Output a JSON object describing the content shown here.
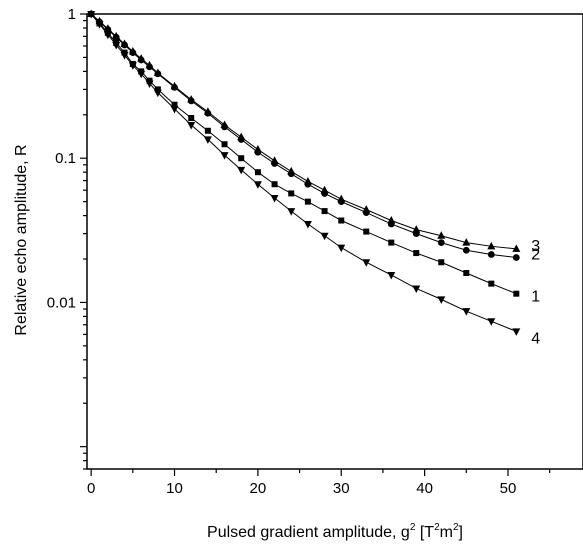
{
  "chart_data": {
    "type": "scatter",
    "xlabel": "Pulsed gradient amplitude, g",
    "xlabel_sup1": "2",
    "xlabel_unit_open": " [T",
    "xlabel_sup2": "2",
    "xlabel_unit_mid": "m",
    "xlabel_sup3": "2",
    "xlabel_unit_close": "]",
    "ylabel": "Relative echo amplitude, R",
    "xlim": [
      -0.5,
      59
    ],
    "ylim": [
      0.0007,
      1
    ],
    "yscale": "log",
    "xticks": [
      0,
      10,
      20,
      30,
      40,
      50
    ],
    "yticks": [
      {
        "value": 1,
        "label": "1"
      },
      {
        "value": 0.1,
        "label": "0.1"
      },
      {
        "value": 0.01,
        "label": "0.01"
      }
    ],
    "series": [
      {
        "name": "1",
        "marker": "square",
        "x": [
          0,
          1,
          2,
          3,
          4,
          5,
          6,
          7,
          8,
          10,
          12,
          14,
          16,
          18,
          20,
          22,
          24,
          26,
          28,
          30,
          33,
          36,
          39,
          42,
          45,
          48,
          51
        ],
        "y": [
          1,
          0.86,
          0.74,
          0.63,
          0.54,
          0.45,
          0.4,
          0.345,
          0.3,
          0.235,
          0.19,
          0.155,
          0.125,
          0.1,
          0.08,
          0.066,
          0.057,
          0.05,
          0.043,
          0.037,
          0.031,
          0.026,
          0.022,
          0.019,
          0.016,
          0.0135,
          0.0115
        ]
      },
      {
        "name": "2",
        "marker": "circle",
        "x": [
          0,
          1,
          2,
          3,
          4,
          5,
          6,
          7,
          8,
          10,
          12,
          14,
          16,
          18,
          20,
          22,
          24,
          26,
          28,
          30,
          33,
          36,
          39,
          42,
          45,
          48,
          51
        ],
        "y": [
          1,
          0.88,
          0.78,
          0.69,
          0.61,
          0.54,
          0.48,
          0.43,
          0.385,
          0.31,
          0.25,
          0.205,
          0.165,
          0.135,
          0.11,
          0.092,
          0.078,
          0.066,
          0.057,
          0.05,
          0.042,
          0.035,
          0.03,
          0.026,
          0.023,
          0.0215,
          0.0205
        ]
      },
      {
        "name": "3",
        "marker": "triangle-up",
        "x": [
          0,
          1,
          2,
          3,
          4,
          5,
          6,
          7,
          8,
          10,
          12,
          14,
          16,
          18,
          20,
          22,
          24,
          26,
          28,
          30,
          33,
          36,
          39,
          42,
          45,
          48,
          51
        ],
        "y": [
          1,
          0.89,
          0.79,
          0.7,
          0.62,
          0.55,
          0.49,
          0.44,
          0.39,
          0.315,
          0.255,
          0.21,
          0.17,
          0.14,
          0.115,
          0.096,
          0.081,
          0.069,
          0.06,
          0.052,
          0.044,
          0.037,
          0.032,
          0.029,
          0.026,
          0.0245,
          0.0235
        ]
      },
      {
        "name": "4",
        "marker": "triangle-down",
        "x": [
          0,
          1,
          2,
          3,
          4,
          5,
          6,
          7,
          8,
          10,
          12,
          14,
          16,
          18,
          20,
          22,
          24,
          26,
          28,
          30,
          33,
          36,
          39,
          42,
          45,
          48,
          51
        ],
        "y": [
          1,
          0.85,
          0.72,
          0.61,
          0.52,
          0.44,
          0.385,
          0.33,
          0.285,
          0.22,
          0.17,
          0.135,
          0.105,
          0.083,
          0.066,
          0.053,
          0.043,
          0.035,
          0.029,
          0.024,
          0.019,
          0.0155,
          0.0125,
          0.0105,
          0.0087,
          0.0074,
          0.0063
        ]
      }
    ],
    "labels_position": "right of curve ends",
    "grid": false,
    "legend": "none"
  }
}
